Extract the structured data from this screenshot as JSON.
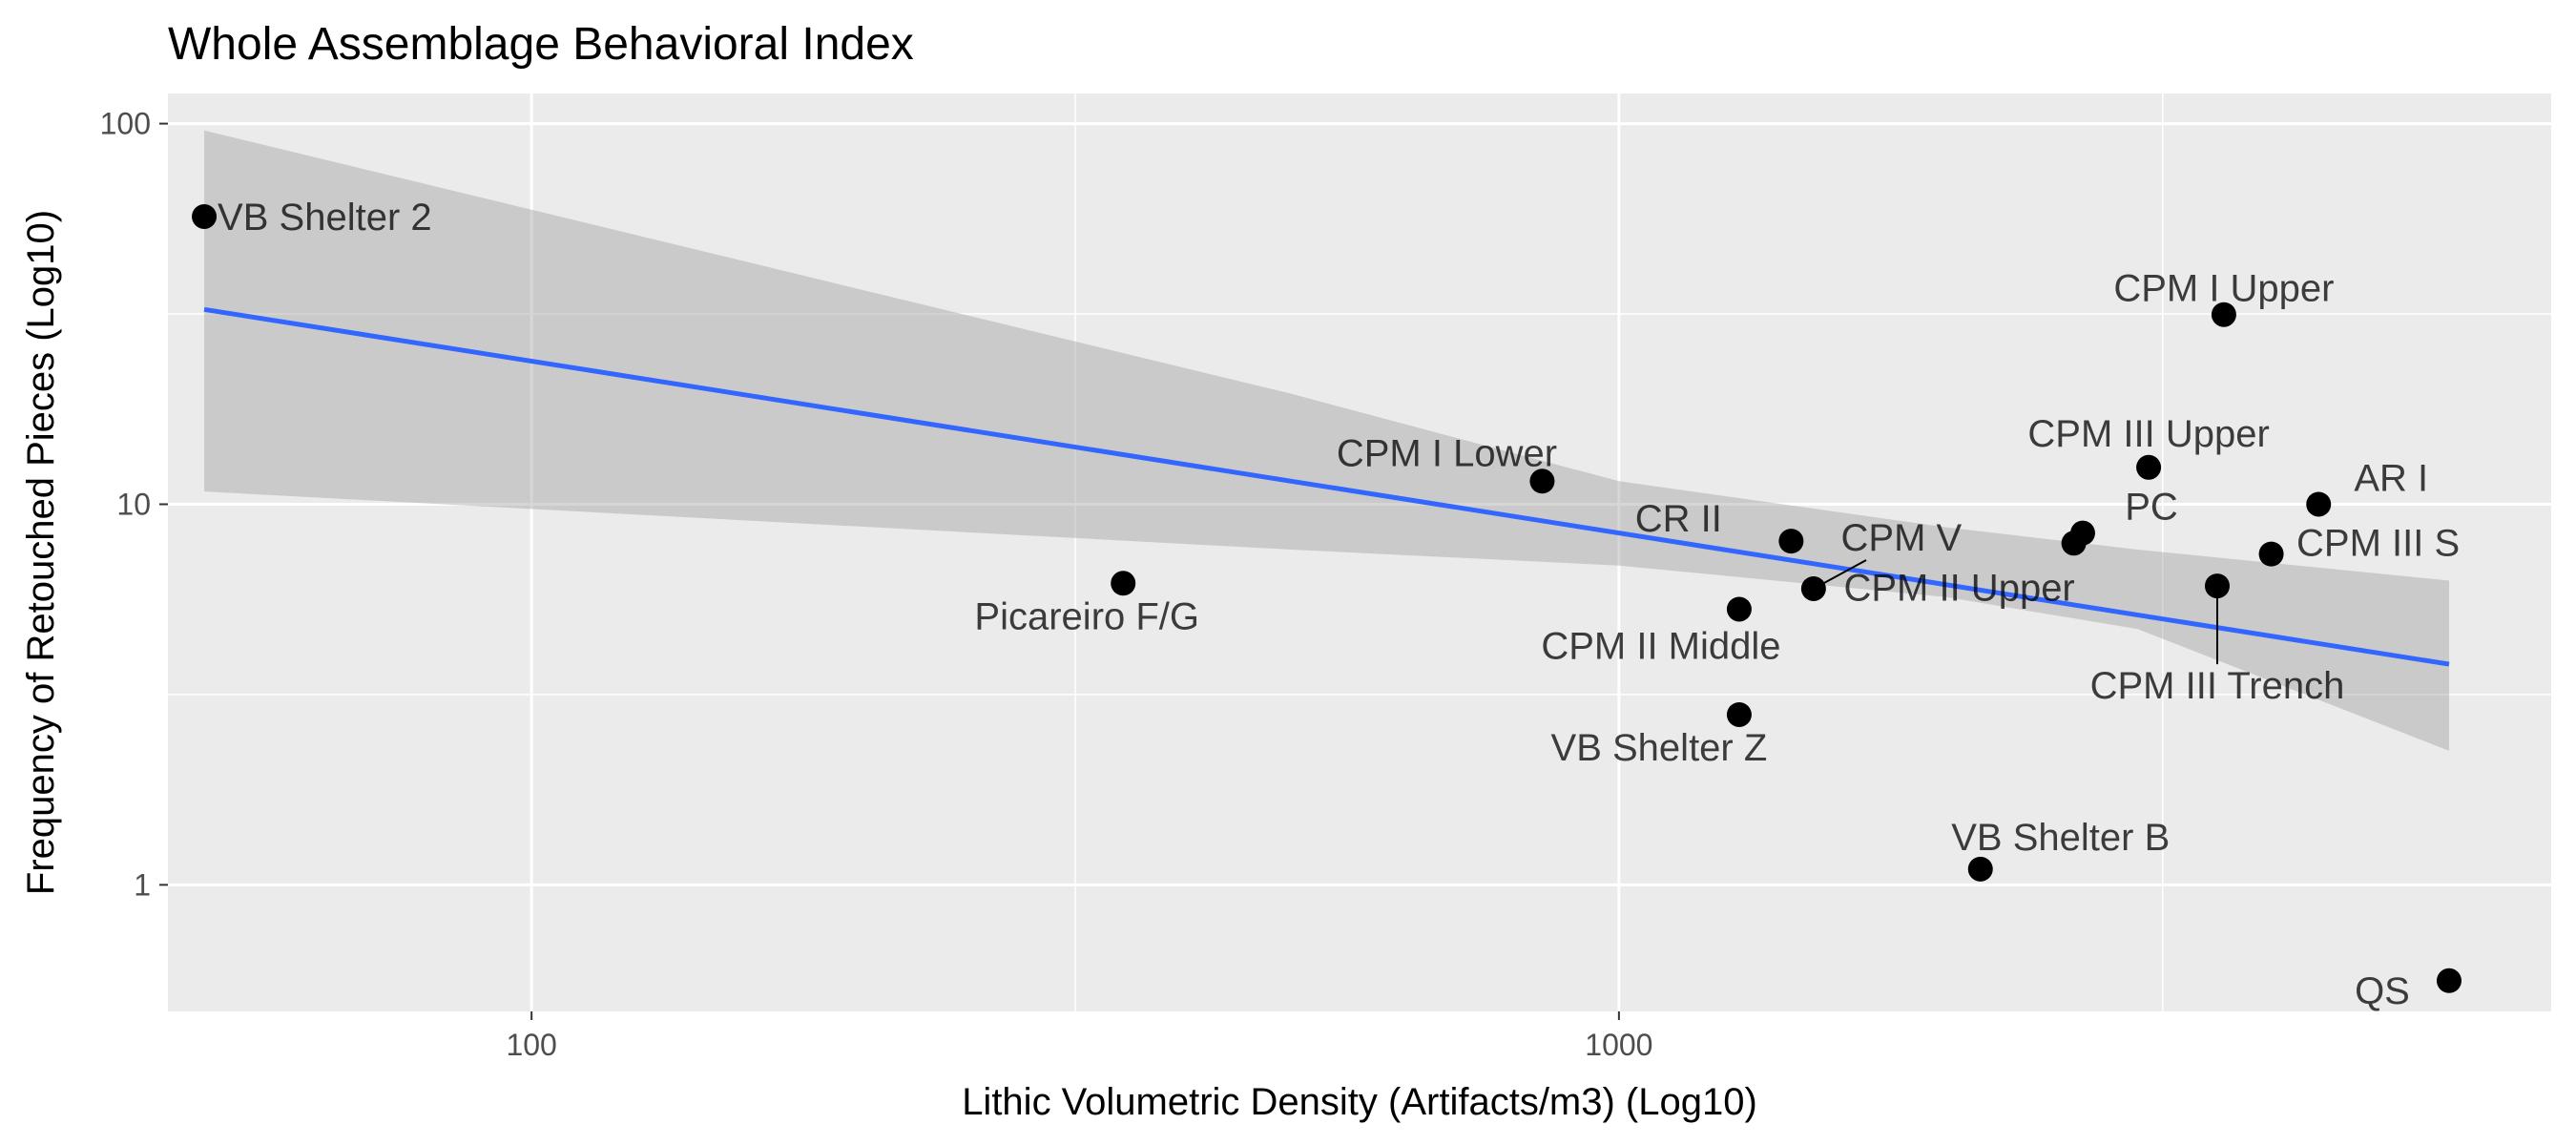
{
  "chart_data": {
    "type": "scatter",
    "title": "Whole Assemblage Behavioral Index",
    "xlabel": "Lithic Volumetric Density (Artifacts/m3) (Log10)",
    "ylabel": "Frequency of Retouched Pieces (Log10)",
    "x_scale": "log10",
    "y_scale": "log10",
    "xlim": [
      46.3,
      7200
    ],
    "ylim": [
      0.465,
      120
    ],
    "x_ticks": [
      100,
      1000
    ],
    "x_tick_labels": [
      "100",
      "1000"
    ],
    "y_ticks": [
      1,
      10,
      100
    ],
    "y_tick_labels": [
      "1",
      "10",
      "100"
    ],
    "grid": true,
    "legend": "none",
    "colors": {
      "panel": "#ebebeb",
      "grid": "#ffffff",
      "points": "#000000",
      "trend": "#3366ff",
      "confidence_band": "#999999"
    },
    "points": [
      {
        "label": "VB Shelter 2",
        "x": 50,
        "y": 57
      },
      {
        "label": "Picareiro F/G",
        "x": 350,
        "y": 6.2
      },
      {
        "label": "CPM I Lower",
        "x": 850,
        "y": 11.5
      },
      {
        "label": "CPM II Middle",
        "x": 1290,
        "y": 5.3
      },
      {
        "label": "VB Shelter Z",
        "x": 1290,
        "y": 2.8
      },
      {
        "label": "CR II",
        "x": 1440,
        "y": 8
      },
      {
        "label": "CPM V",
        "x": 1510,
        "y": 6
      },
      {
        "label": "VB Shelter B",
        "x": 2150,
        "y": 1.1
      },
      {
        "label": "CPM II Upper",
        "x": 2620,
        "y": 7.9
      },
      {
        "label": "PC",
        "x": 2670,
        "y": 8.4
      },
      {
        "label": "CPM III Upper",
        "x": 3070,
        "y": 12.5
      },
      {
        "label": "CPM III Trench",
        "x": 3550,
        "y": 6.1
      },
      {
        "label": "CPM I Upper",
        "x": 3600,
        "y": 31.5
      },
      {
        "label": "CPM III S",
        "x": 3980,
        "y": 7.4
      },
      {
        "label": "AR I",
        "x": 4400,
        "y": 10
      },
      {
        "label": "QS",
        "x": 5800,
        "y": 0.56
      }
    ],
    "trend_line": {
      "type": "linear fit (log-log)",
      "x": [
        50,
        5800
      ],
      "y": [
        32.5,
        3.8
      ]
    },
    "confidence_band": {
      "x": [
        50,
        500,
        1000,
        2000,
        3000,
        5800
      ],
      "lower": [
        10.8,
        7.6,
        6.9,
        5.7,
        4.7,
        2.25
      ],
      "upper": [
        96,
        19.5,
        11.5,
        8.7,
        7.6,
        6.3
      ]
    }
  }
}
